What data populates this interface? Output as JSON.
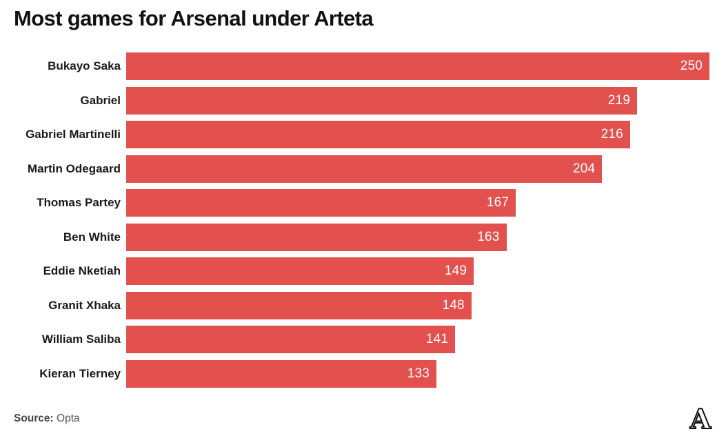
{
  "title": "Most games for Arsenal under Arteta",
  "source": {
    "label": "Source:",
    "value": "Opta"
  },
  "logo": {
    "icon": "the-athletic-a-logo",
    "glyph": "A"
  },
  "colors": {
    "bar": "#E2514D",
    "title": "#111111",
    "category_label": "#1a1a1a",
    "value_label": "#FFFFFF",
    "source_text": "#4d4d4d",
    "background": "#FFFFFF"
  },
  "chart_data": {
    "type": "bar",
    "orientation": "horizontal",
    "title": "Most games for Arsenal under Arteta",
    "xlabel": "",
    "ylabel": "",
    "xlim": [
      0,
      250
    ],
    "grid": false,
    "value_labels": "inside-end",
    "categories": [
      "Bukayo Saka",
      "Gabriel",
      "Gabriel Martinelli",
      "Martin Odegaard",
      "Thomas Partey",
      "Ben White",
      "Eddie Nketiah",
      "Granit Xhaka",
      "William Saliba",
      "Kieran Tierney"
    ],
    "values": [
      250,
      219,
      216,
      204,
      167,
      163,
      149,
      148,
      141,
      133
    ]
  }
}
